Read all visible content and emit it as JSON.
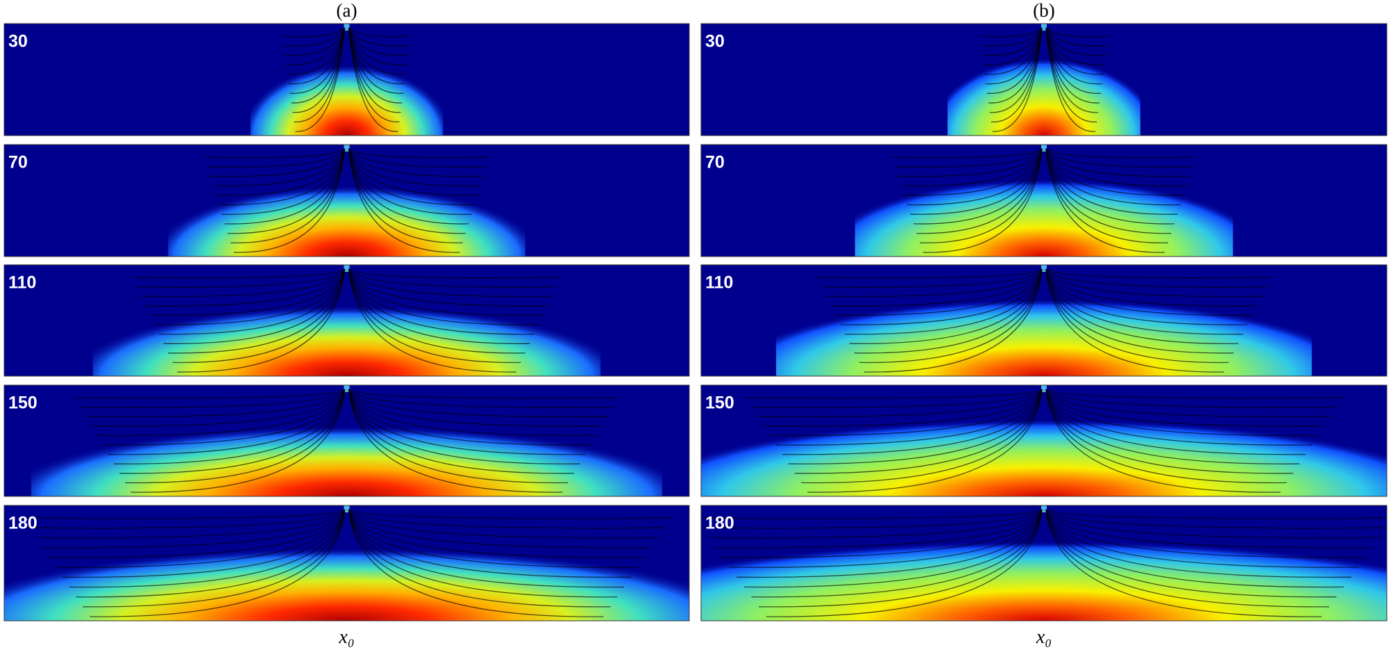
{
  "panels": [
    {
      "label": "(a)",
      "times": [
        "30",
        "70",
        "110",
        "150",
        "180"
      ],
      "axis_label": "x₀"
    },
    {
      "label": "(b)",
      "times": [
        "30",
        "70",
        "110",
        "150",
        "180"
      ],
      "axis_label": "x₀"
    }
  ]
}
